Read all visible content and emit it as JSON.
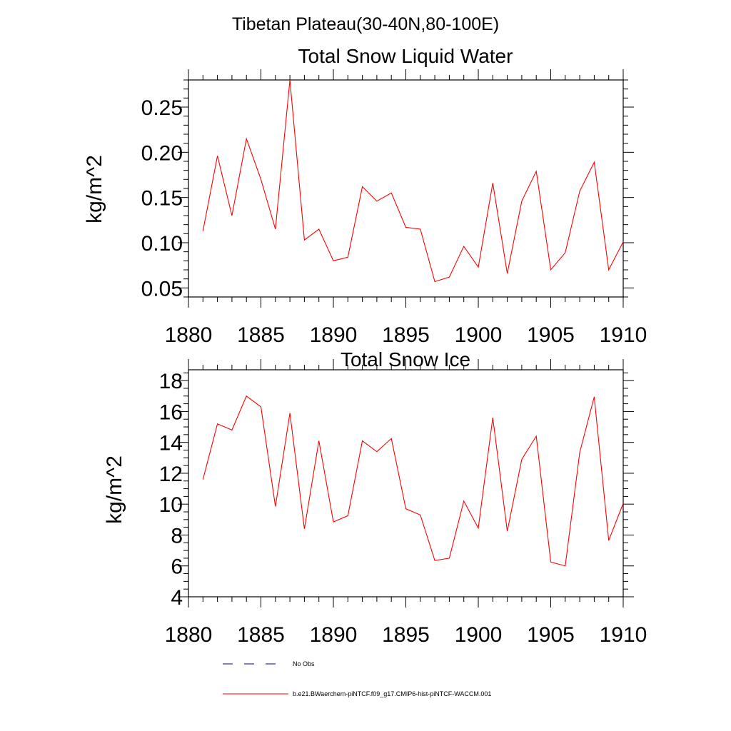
{
  "suptitle": "Tibetan Plateau(30-40N,80-100E)",
  "colors": {
    "model": "#ff0000",
    "obs": "#00008b",
    "axis": "#000000"
  },
  "chart_data": [
    {
      "type": "line",
      "title": "Total Snow Liquid Water",
      "xlabel": "",
      "ylabel": "kg/m^2",
      "xlim": [
        1880,
        1910
      ],
      "ylim": [
        0.04,
        0.28
      ],
      "x_ticks": [
        "1880",
        "1885",
        "1890",
        "1895",
        "1900",
        "1905",
        "1910"
      ],
      "y_ticks": [
        "0.05",
        "0.10",
        "0.15",
        "0.20",
        "0.25"
      ],
      "y_tick_values": [
        0.05,
        0.1,
        0.15,
        0.2,
        0.25
      ],
      "grid": false,
      "series": [
        {
          "name": "b.e21.BWaerchem-piNTCF.f09_g17.CMIP6-hist-piNTCF-WACCM.001",
          "x": [
            1881,
            1882,
            1883,
            1884,
            1885,
            1886,
            1887,
            1888,
            1889,
            1890,
            1891,
            1892,
            1893,
            1894,
            1895,
            1896,
            1897,
            1898,
            1899,
            1900,
            1901,
            1902,
            1903,
            1904,
            1905,
            1906,
            1907,
            1908,
            1909,
            1910
          ],
          "values": [
            0.113,
            0.196,
            0.13,
            0.215,
            0.17,
            0.115,
            0.28,
            0.103,
            0.115,
            0.08,
            0.084,
            0.162,
            0.146,
            0.155,
            0.117,
            0.115,
            0.057,
            0.062,
            0.096,
            0.073,
            0.166,
            0.066,
            0.146,
            0.179,
            0.07,
            0.089,
            0.157,
            0.189,
            0.07,
            0.101
          ]
        }
      ]
    },
    {
      "type": "line",
      "title": "Total Snow Ice",
      "xlabel": "",
      "ylabel": "kg/m^2",
      "xlim": [
        1880,
        1910
      ],
      "ylim": [
        4,
        18.7
      ],
      "x_ticks": [
        "1880",
        "1885",
        "1890",
        "1895",
        "1900",
        "1905",
        "1910"
      ],
      "y_ticks": [
        "4",
        "6",
        "8",
        "10",
        "12",
        "14",
        "16",
        "18"
      ],
      "y_tick_values": [
        4,
        6,
        8,
        10,
        12,
        14,
        16,
        18
      ],
      "grid": false,
      "series": [
        {
          "name": "b.e21.BWaerchem-piNTCF.f09_g17.CMIP6-hist-piNTCF-WACCM.001",
          "x": [
            1881,
            1882,
            1883,
            1884,
            1885,
            1886,
            1887,
            1888,
            1889,
            1890,
            1891,
            1892,
            1893,
            1894,
            1895,
            1896,
            1897,
            1898,
            1899,
            1900,
            1901,
            1902,
            1903,
            1904,
            1905,
            1906,
            1907,
            1908,
            1909,
            1910
          ],
          "values": [
            11.6,
            15.2,
            14.8,
            17.0,
            16.3,
            9.85,
            15.9,
            8.4,
            14.1,
            8.85,
            9.25,
            14.1,
            13.4,
            14.25,
            9.7,
            9.3,
            6.35,
            6.5,
            10.2,
            8.45,
            15.6,
            8.25,
            12.9,
            14.4,
            6.25,
            6.0,
            13.35,
            16.95,
            7.65,
            10.05
          ]
        }
      ]
    }
  ],
  "legend": {
    "placement": "bottom",
    "entries": [
      {
        "label": "No Obs",
        "style": "dashed",
        "color": "#00008b"
      },
      {
        "label": "b.e21.BWaerchem-piNTCF.f09_g17.CMIP6-hist-piNTCF-WACCM.001",
        "style": "solid",
        "color": "#ff0000"
      }
    ]
  }
}
